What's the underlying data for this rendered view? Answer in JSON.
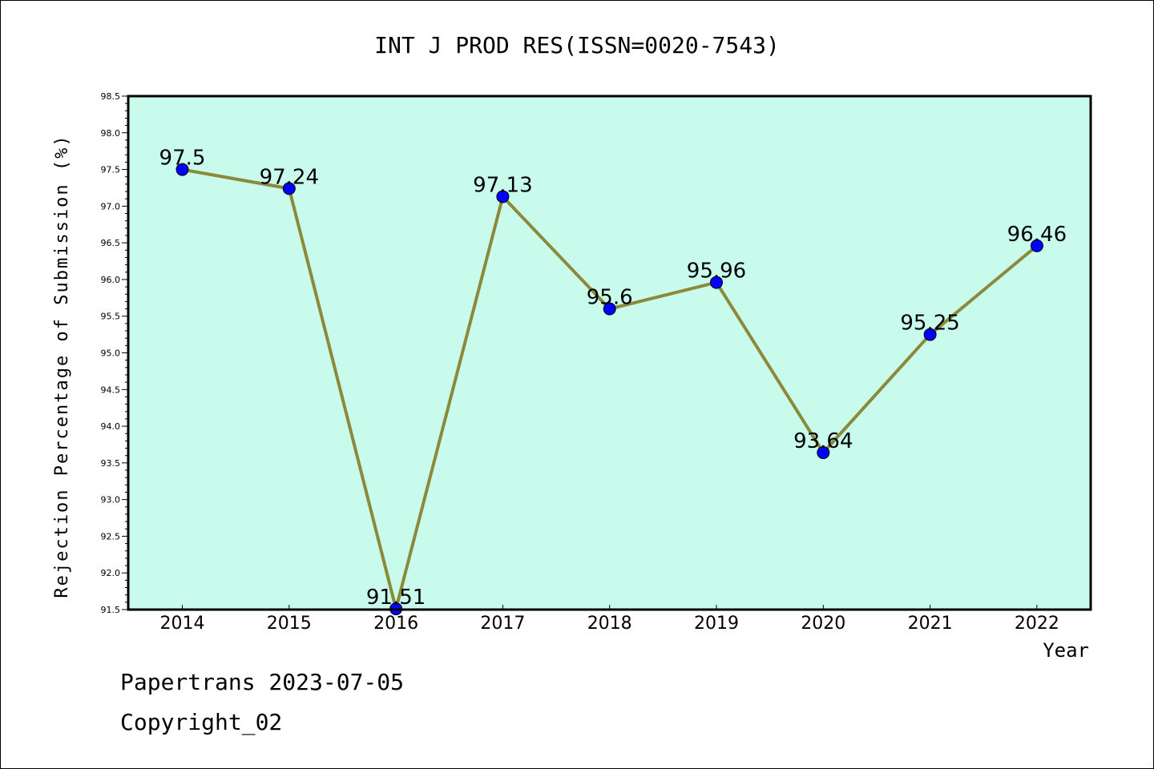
{
  "chart_data": {
    "type": "line",
    "title": "INT J PROD RES(ISSN=0020-7543)",
    "xlabel": "Year",
    "ylabel": "Rejection Percentage of Submission (%)",
    "categories": [
      "2014",
      "2015",
      "2016",
      "2017",
      "2018",
      "2019",
      "2020",
      "2021",
      "2022"
    ],
    "series": [
      {
        "values": [
          97.5,
          97.24,
          91.51,
          97.13,
          95.6,
          95.96,
          93.64,
          95.25,
          96.46
        ],
        "data_labels": [
          "97.5",
          "97.24",
          "91.51",
          "97.13",
          "95.6",
          "95.96",
          "93.64",
          "95.25",
          "96.46"
        ]
      }
    ],
    "ylim": [
      91.5,
      98.5
    ],
    "yticks": [
      "91.5",
      "92.0",
      "92.5",
      "93.0",
      "93.5",
      "94.0",
      "94.5",
      "95.0",
      "95.5",
      "96.0",
      "96.5",
      "97.0",
      "97.5",
      "98.0",
      "98.5"
    ],
    "grid": false,
    "colors": {
      "plot_background": "#c8fbec",
      "line": "#8b8a3a",
      "marker": "#0000ff"
    }
  },
  "footer": {
    "line1": "Papertrans 2023-07-05",
    "line2": "Copyright_02"
  }
}
